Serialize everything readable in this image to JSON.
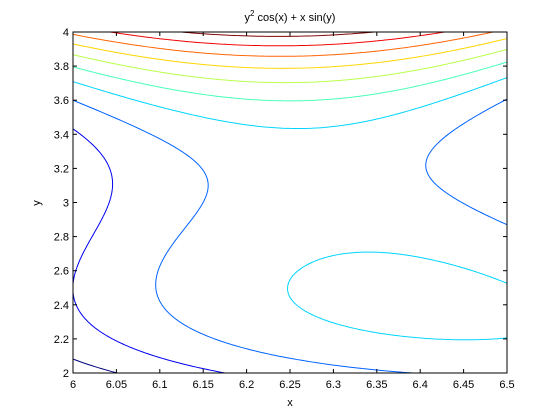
{
  "chart_data": {
    "type": "contour",
    "title_parts": {
      "base": "y",
      "sup": "2",
      "rest": " cos(x) + x sin(y)"
    },
    "xlabel": "x",
    "ylabel": "y",
    "xlim": [
      6,
      6.5
    ],
    "ylim": [
      2,
      4
    ],
    "xticks": [
      "6",
      "6.05",
      "6.1",
      "6.15",
      "6.2",
      "6.25",
      "6.3",
      "6.35",
      "6.4",
      "6.45",
      "6.5"
    ],
    "yticks": [
      "2",
      "2.2",
      "2.4",
      "2.6",
      "2.8",
      "3",
      "3.2",
      "3.4",
      "3.6",
      "3.8",
      "4"
    ],
    "grid": false,
    "colormap": "jet",
    "function": "y^2*cos(x) + x*sin(y)",
    "levels": 10
  }
}
